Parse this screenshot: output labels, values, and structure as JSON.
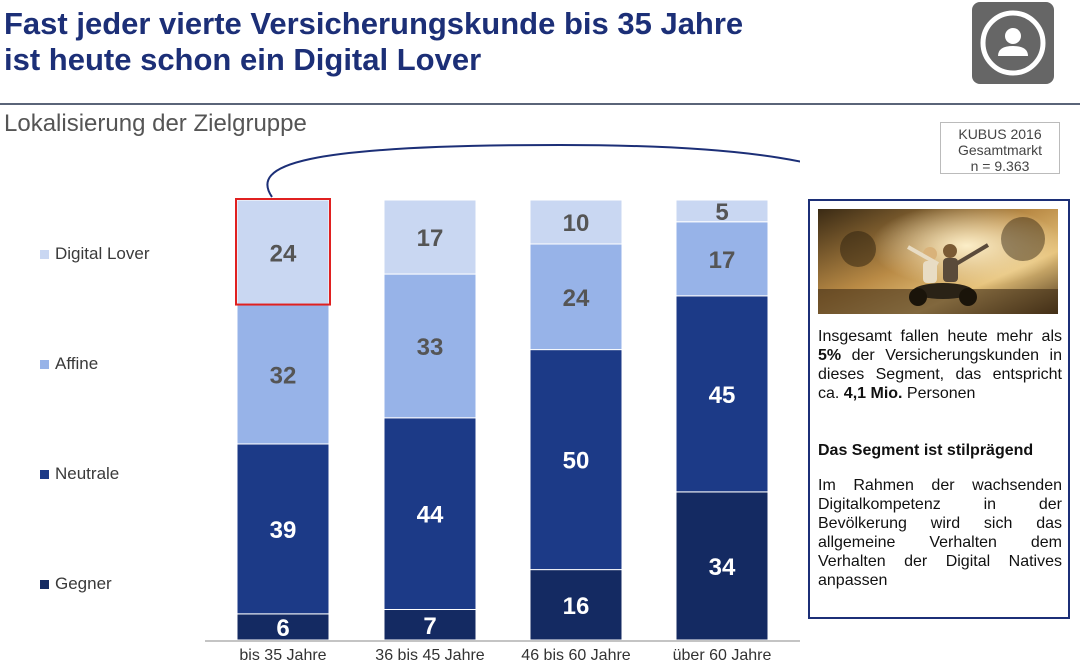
{
  "title_line1": "Fast jeder vierte Versicherungskunde bis 35 Jahre",
  "title_line2": "ist heute schon ein Digital Lover",
  "subtitle": "Lokalisierung der Zielgruppe",
  "source": {
    "line1": "KUBUS 2016",
    "line2": "Gesamtmarkt",
    "line3": "n = 9.363"
  },
  "info": {
    "p1_a": "Insgesamt fallen heute mehr als ",
    "p1_b": "5%",
    "p1_c": " der Versicherungskunden in dieses Segment, das entspricht ca. ",
    "p1_d": "4,1 Mio.",
    "p1_e": " Personen",
    "heading": "Das Segment ist stilprägend",
    "p2": "Im Rahmen der wachsenden Digitalkompetenz in der Bevölkerung wird sich das allgemeine Verhalten dem Verhalten der Digital Natives anpassen"
  },
  "colors": {
    "digital_lover": "#c9d7f2",
    "affine": "#97b3e8",
    "neutrale": "#1c3a87",
    "gegner": "#142a62",
    "highlight": "#e02020",
    "title": "#1c2f77"
  },
  "chart_data": {
    "type": "bar",
    "stacked": true,
    "categories": [
      "bis 35 Jahre",
      "36 bis 45 Jahre",
      "46 bis 60 Jahre",
      "über 60 Jahre"
    ],
    "series": [
      {
        "name": "Gegner",
        "values": [
          6,
          7,
          16,
          34
        ]
      },
      {
        "name": "Neutrale",
        "values": [
          39,
          44,
          50,
          45
        ]
      },
      {
        "name": "Affine",
        "values": [
          32,
          33,
          24,
          17
        ]
      },
      {
        "name": "Digital Lover",
        "values": [
          24,
          17,
          10,
          5
        ]
      }
    ],
    "legend": [
      "Digital Lover",
      "Affine",
      "Neutrale",
      "Gegner"
    ],
    "legend_position": "left",
    "highlighted": {
      "category": "bis 35 Jahre",
      "series": "Digital Lover"
    }
  }
}
